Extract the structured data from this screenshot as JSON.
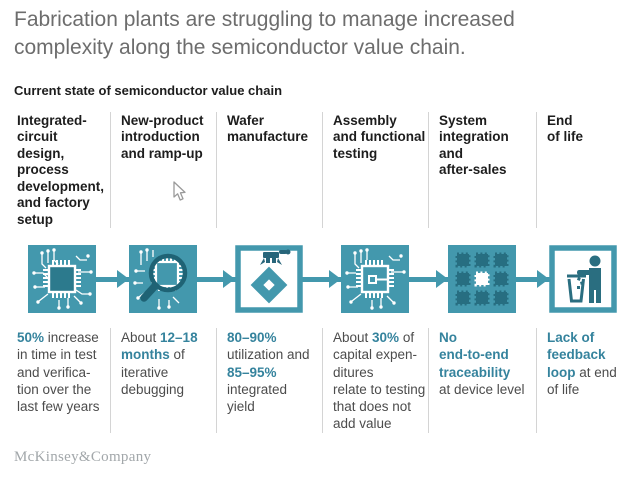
{
  "title": "Fabrication plants are struggling to manage increased\ncomplexity along the semiconductor value chain.",
  "subtitle": "Current state of semiconductor value chain",
  "columns": [
    {
      "header": "Integrated-\ncircuit\ndesign,\nprocess\ndevelopment,\nand factory\nsetup",
      "icon": "chip-design-icon",
      "stat": [
        {
          "t": "50%",
          "em": true
        },
        {
          "t": " increase\nin time in test\nand verifica-\ntion over the\nlast few years",
          "em": false
        }
      ]
    },
    {
      "header": "New-product\nintroduction\nand ramp-up",
      "icon": "chip-magnifier-icon",
      "stat": [
        {
          "t": "About ",
          "em": false
        },
        {
          "t": "12–18\nmonths",
          "em": true
        },
        {
          "t": " of\niterative\ndebugging",
          "em": false
        }
      ]
    },
    {
      "header": "Wafer\nmanufacture",
      "icon": "wafer-gripper-icon",
      "stat": [
        {
          "t": "80–90%",
          "em": true
        },
        {
          "t": "\nutilization and\n",
          "em": false
        },
        {
          "t": "85–95%",
          "em": true
        },
        {
          "t": "\nintegrated\nyield",
          "em": false
        }
      ]
    },
    {
      "header": "Assembly\nand functional\ntesting",
      "icon": "chip-assembly-icon",
      "stat": [
        {
          "t": "About ",
          "em": false
        },
        {
          "t": "30%",
          "em": true
        },
        {
          "t": " of\ncapital expen-\nditures\nrelate to testing\nthat does not\nadd value",
          "em": false
        }
      ]
    },
    {
      "header": "System\nintegration\nand\nafter-sales",
      "icon": "chip-grid-icon",
      "stat": [
        {
          "t": "No\nend-to-end\ntraceability",
          "em": true
        },
        {
          "t": "\nat device level",
          "em": false
        }
      ]
    },
    {
      "header": "End\nof life",
      "icon": "person-trash-icon",
      "stat": [
        {
          "t": "Lack of\nfeedback\nloop",
          "em": true
        },
        {
          "t": " at end\nof life",
          "em": false
        }
      ]
    }
  ],
  "footer": {
    "brand": "McKinsey&Company"
  },
  "colors": {
    "teal": "#4398ad",
    "teal_dark": "#27657a",
    "stat_teal": "#35839d",
    "divider": "#d4d4d4",
    "title_gray": "#6d6d6d",
    "text_dark": "#1d1d1d",
    "body_gray": "#4c4c4c",
    "footer_gray": "#a2a7aa"
  }
}
